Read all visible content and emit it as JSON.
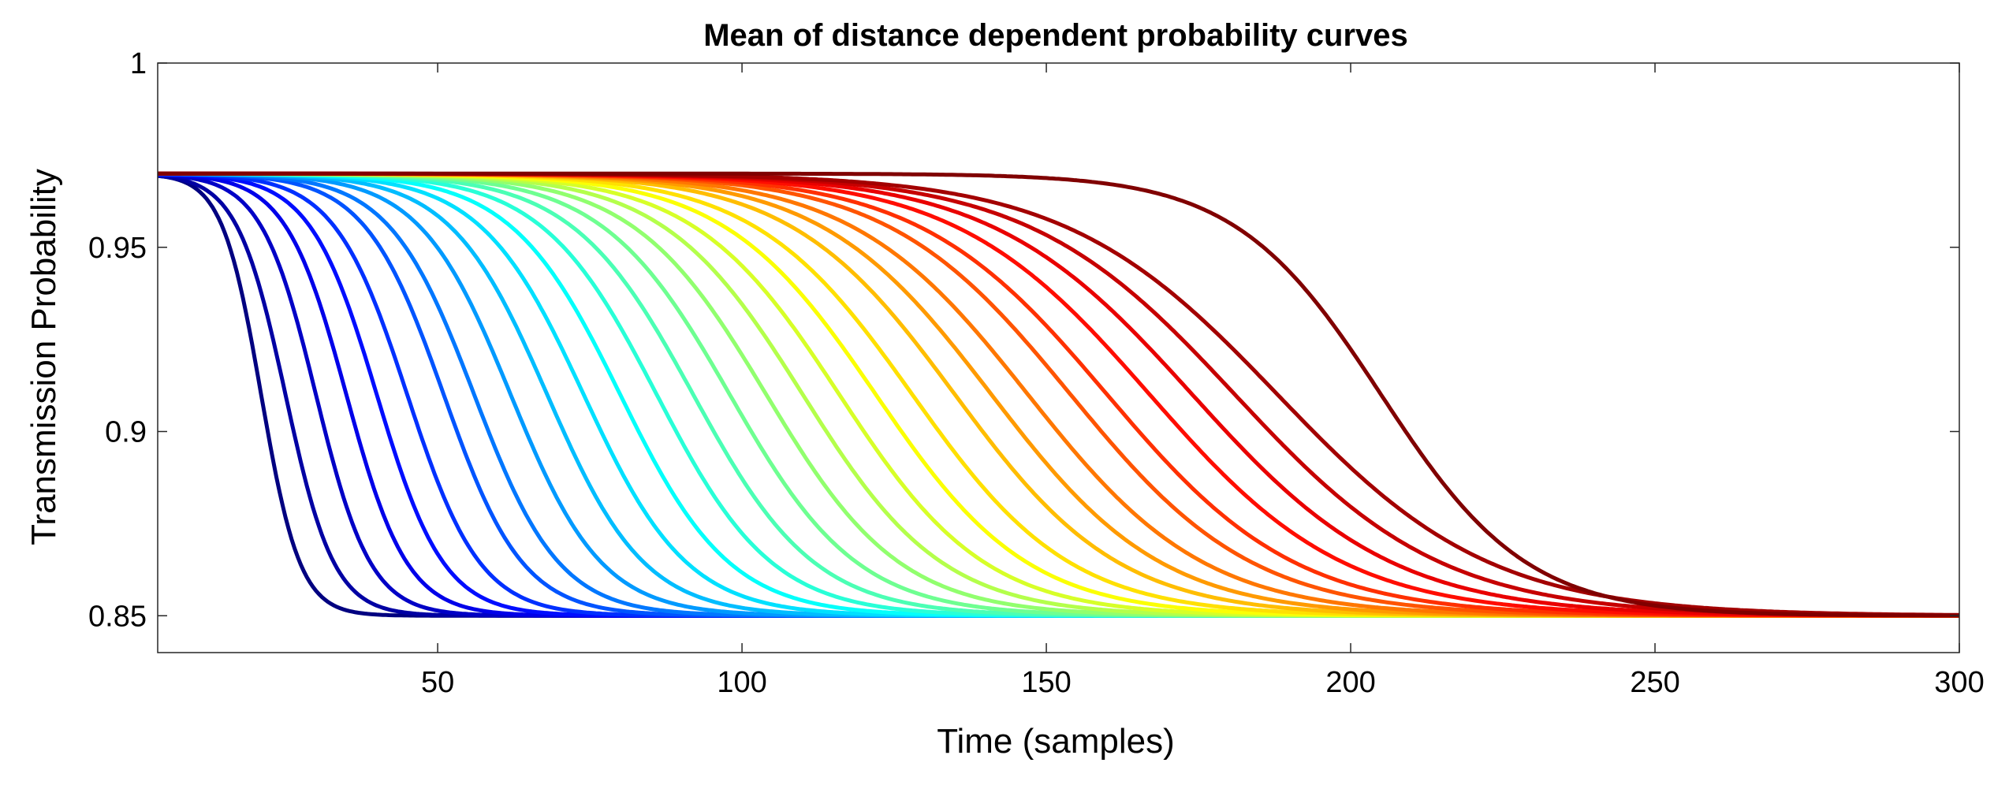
{
  "chart_data": {
    "type": "line",
    "title": "Mean of distance dependent probability curves",
    "xlabel": "Time (samples)",
    "ylabel": "Transmission Probability",
    "xlim": [
      4,
      300
    ],
    "ylim": [
      0.84,
      1.0
    ],
    "x_ticks": [
      50,
      100,
      150,
      200,
      250,
      300
    ],
    "y_ticks": [
      0.85,
      0.9,
      0.95,
      1
    ],
    "x_tick_labels": [
      "50",
      "100",
      "150",
      "200",
      "250",
      "300"
    ],
    "y_tick_labels": [
      "0.85",
      "0.9",
      "0.95",
      "1"
    ],
    "grid": false,
    "legend": "none",
    "colormap": "jet",
    "curve_model": {
      "form": "sigmoid decay",
      "y_start": 0.97,
      "y_end": 0.85,
      "x_start": 4,
      "series_count": 30,
      "midpoints": [
        21,
        25,
        30,
        35,
        40,
        45,
        51,
        56,
        62,
        68,
        74,
        80,
        86,
        92,
        98,
        104,
        110,
        116,
        122,
        128,
        135,
        141,
        147,
        154,
        160,
        167,
        174,
        181,
        188,
        205
      ],
      "widths": [
        3.2,
        4,
        4.5,
        5,
        5.5,
        6,
        6.5,
        7,
        7.5,
        8,
        8.5,
        9,
        9.5,
        10,
        10.5,
        11,
        11.5,
        12,
        12.5,
        13,
        13.5,
        14,
        14.5,
        15,
        15.5,
        16,
        16.5,
        17,
        17.5,
        12
      ]
    }
  }
}
